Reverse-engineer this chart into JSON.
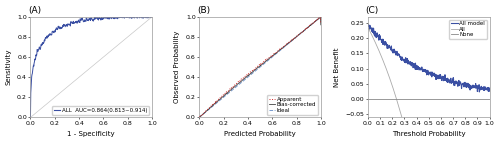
{
  "fig_width": 5.0,
  "fig_height": 1.43,
  "dpi": 100,
  "background_color": "#ffffff",
  "panel_labels": [
    "(A)",
    "(B)",
    "(C)"
  ],
  "panel_label_fontsize": 6.5,
  "axis_label_fontsize": 5.0,
  "tick_fontsize": 4.5,
  "legend_fontsize": 4.0,
  "roc": {
    "line_color": "#3a4fa3",
    "line_width": 0.7,
    "diag_color": "#c8c8c8",
    "ylabel": "Sensitivity",
    "xlabel": "1 - Specificity",
    "legend_label": "ALL  AUC=0.864(0.813~0.914)"
  },
  "calib": {
    "apparent_color": "#cc2222",
    "biascorr_color": "#444444",
    "ideal_color": "#7799cc",
    "ylabel": "Observed Probability",
    "xlabel": "Predicted Probability",
    "legend_apparent": "Apparent",
    "legend_biascorr": "Bias-corrected",
    "legend_ideal": "Ideal"
  },
  "dca": {
    "model_color": "#3a4fa3",
    "all_color": "#aaaaaa",
    "none_color": "#888888",
    "model_lw": 0.8,
    "all_lw": 0.6,
    "none_lw": 0.6,
    "ylabel": "Net Benefit",
    "xlabel": "Threshold Probability",
    "legend_model": "All model",
    "legend_all": "All",
    "legend_none": "None",
    "ylim": [
      -0.06,
      0.27
    ],
    "yticks": [
      -0.05,
      0.0,
      0.05,
      0.1,
      0.15,
      0.2,
      0.25
    ]
  }
}
